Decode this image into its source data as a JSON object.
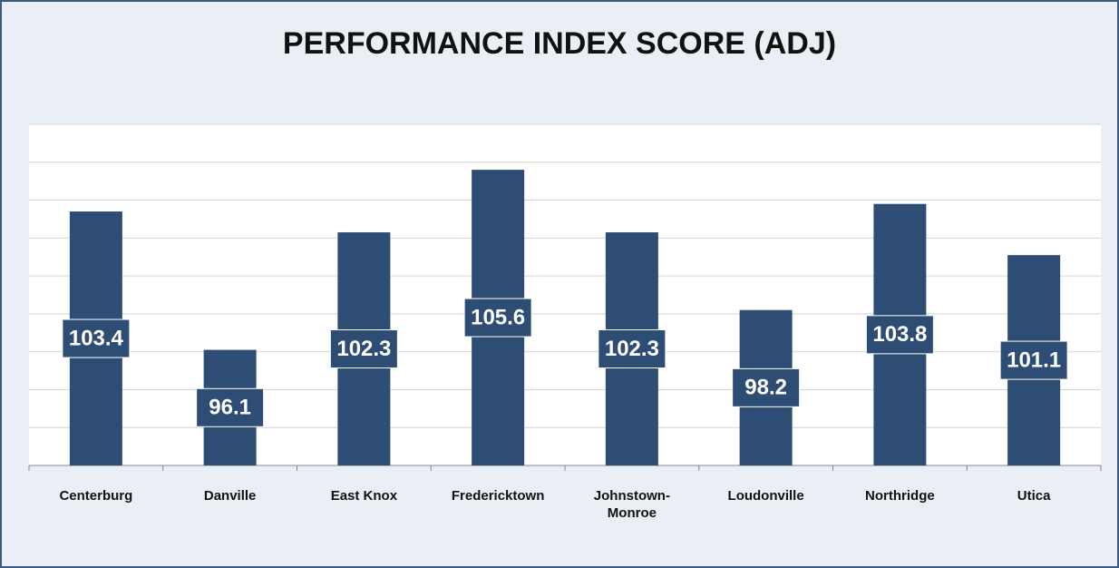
{
  "chart_data": {
    "type": "bar",
    "title": "PERFORMANCE INDEX SCORE (ADJ)",
    "categories": [
      "Centerburg",
      "Danville",
      "East Knox",
      "Fredericktown",
      "Johnstown-Monroe",
      "Loudonville",
      "Northridge",
      "Utica"
    ],
    "values": [
      103.4,
      96.1,
      102.3,
      105.6,
      102.3,
      98.2,
      103.8,
      101.1
    ],
    "color": "#2e4d74",
    "ylim": [
      90,
      108
    ],
    "yticks": [
      90,
      92,
      94,
      96,
      98,
      100,
      102,
      104,
      106,
      108
    ],
    "grid": true
  }
}
